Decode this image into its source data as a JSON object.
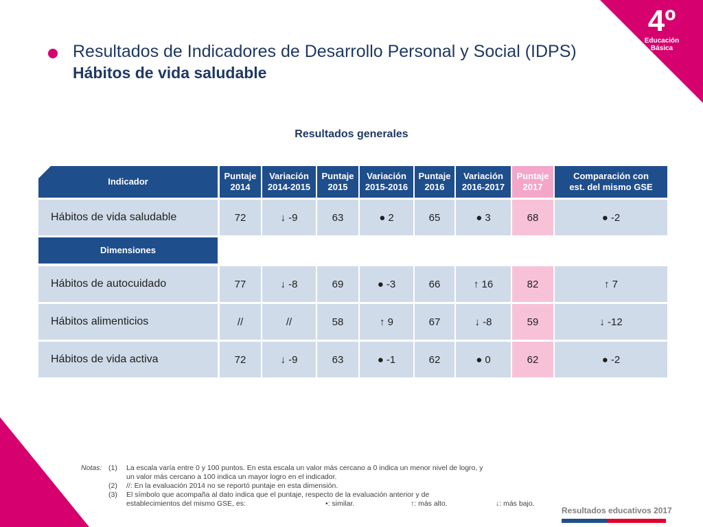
{
  "header": {
    "grade": "4º",
    "level_line1": "Educación",
    "level_line2": "Básica",
    "title": "Resultados de Indicadores de Desarrollo Personal y Social (IDPS)",
    "subtitle": "Hábitos de vida saludable"
  },
  "section_title": "Resultados generales",
  "table": {
    "indicator_header": "Indicador",
    "columns": [
      {
        "line1": "Puntaje",
        "line2": "2014"
      },
      {
        "line1": "Variación",
        "line2": "2014-2015"
      },
      {
        "line1": "Puntaje",
        "line2": "2015"
      },
      {
        "line1": "Variación",
        "line2": "2015-2016"
      },
      {
        "line1": "Puntaje",
        "line2": "2016"
      },
      {
        "line1": "Variación",
        "line2": "2016-2017"
      },
      {
        "line1": "Puntaje",
        "line2": "2017"
      },
      {
        "line1": "Comparación con",
        "line2": "est. del mismo GSE"
      }
    ],
    "main_row": {
      "label": "Hábitos de vida saludable",
      "values": [
        "72",
        "↓ -9",
        "63",
        "● 2",
        "65",
        "● 3",
        "68",
        "● -2"
      ]
    },
    "dimensions_header": "Dimensiones",
    "dimension_rows": [
      {
        "label": "Hábitos de autocuidado",
        "values": [
          "77",
          "↓ -8",
          "69",
          "● -3",
          "66",
          "↑ 16",
          "82",
          "↑ 7"
        ]
      },
      {
        "label": "Hábitos alimenticios",
        "values": [
          "//",
          "//",
          "58",
          "↑ 9",
          "67",
          "↓ -8",
          "59",
          "↓ -12"
        ]
      },
      {
        "label": "Hábitos de vida activa",
        "values": [
          "72",
          "↓ -9",
          "63",
          "● -1",
          "62",
          "● 0",
          "62",
          "● -2"
        ]
      }
    ]
  },
  "notes": {
    "label": "Notas:",
    "items": [
      {
        "num": "(1)",
        "text": "La escala varía entre 0 y 100 puntos. En esta escala un valor más cercano a 0 indica un menor nivel de logro, y"
      },
      {
        "num": "",
        "text": "un valor más cercano a 100 indica un mayor logro en el indicador."
      },
      {
        "num": "(2)",
        "text": "//: En la evaluación 2014 no se reportó puntaje en esta dimensión."
      },
      {
        "num": "(3)",
        "text": "El símbolo que acompaña al dato indica que el puntaje, respecto de la evaluación anterior y de"
      }
    ],
    "last_line": "establecimientos del mismo GSE, es:",
    "legend_similar": "•: similar.",
    "legend_higher": "↑: más alto.",
    "legend_lower": "↓: más bajo."
  },
  "brand": "Resultados educativos 2017",
  "colors": {
    "accent": "#d6006e",
    "header_blue": "#1f4e8c",
    "cell_blue": "#cfdbe8",
    "highlight_pink": "#f7c2d8"
  }
}
